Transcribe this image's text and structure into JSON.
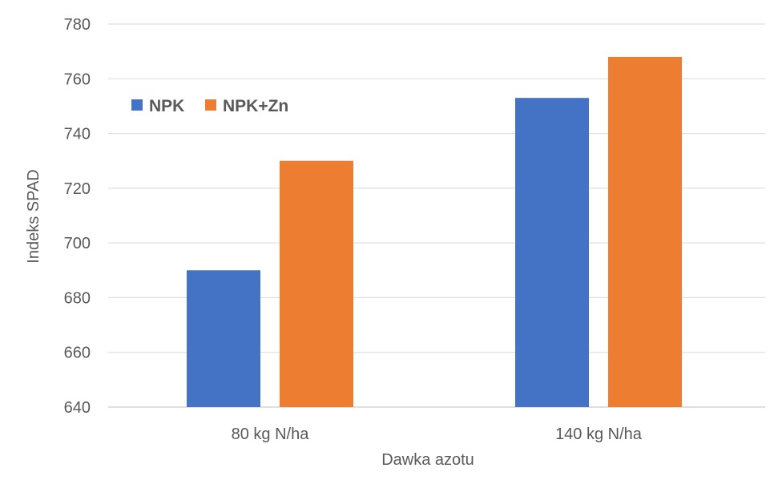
{
  "chart_data": {
    "type": "bar",
    "title": "",
    "xlabel": "Dawka azotu",
    "ylabel": "Indeks SPAD",
    "categories": [
      "80 kg N/ha",
      "140 kg N/ha"
    ],
    "series": [
      {
        "name": "NPK",
        "values": [
          690,
          753
        ],
        "color": "#4472C4"
      },
      {
        "name": "NPK+Zn",
        "values": [
          730,
          768
        ],
        "color": "#ED7D31"
      }
    ],
    "ylim": [
      640,
      780
    ],
    "yticks": [
      640,
      660,
      680,
      700,
      720,
      740,
      760,
      780
    ],
    "grid": true,
    "legend_position": "top-left"
  }
}
